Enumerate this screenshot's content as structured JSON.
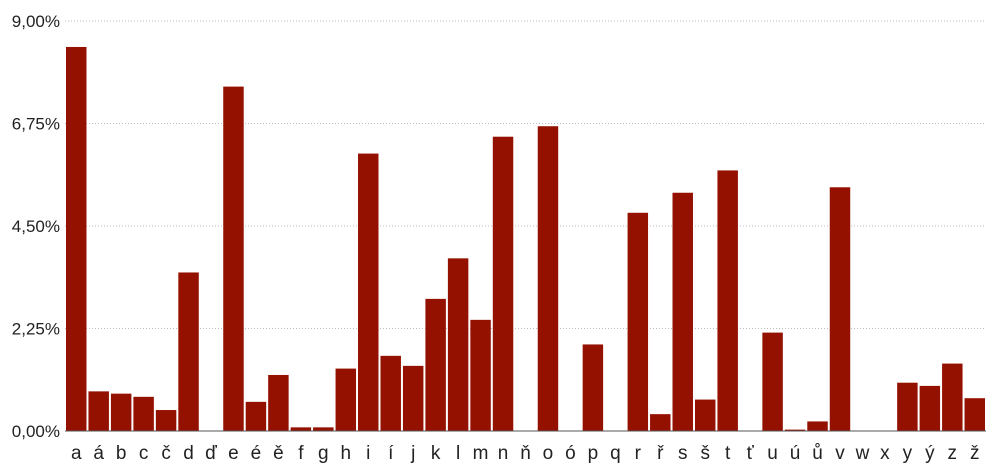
{
  "chart_data": {
    "type": "bar",
    "title": "",
    "xlabel": "",
    "ylabel": "",
    "ylim": [
      0,
      9
    ],
    "y_ticks": [
      "0,00%",
      "2,25%",
      "4,50%",
      "6,75%",
      "9,00%"
    ],
    "y_tick_values": [
      0,
      2.25,
      4.5,
      6.75,
      9
    ],
    "grid": true,
    "bar_color": "#941100",
    "categories": [
      "a",
      "á",
      "b",
      "c",
      "č",
      "d",
      "ď",
      "e",
      "é",
      "ě",
      "f",
      "g",
      "h",
      "i",
      "í",
      "j",
      "k",
      "l",
      "m",
      "n",
      "ň",
      "o",
      "ó",
      "p",
      "q",
      "r",
      "ř",
      "s",
      "š",
      "t",
      "ť",
      "u",
      "ú",
      "ů",
      "v",
      "w",
      "x",
      "y",
      "ý",
      "z",
      "ž"
    ],
    "values": [
      8.43,
      0.87,
      0.82,
      0.75,
      0.46,
      3.48,
      0,
      7.56,
      0.64,
      1.23,
      0.08,
      0.08,
      1.37,
      6.09,
      1.65,
      1.43,
      2.9,
      3.79,
      2.44,
      6.46,
      0,
      6.69,
      0,
      1.9,
      0,
      4.79,
      0.37,
      5.23,
      0.69,
      5.72,
      0,
      2.16,
      0.03,
      0.21,
      5.35,
      0,
      0,
      1.06,
      0.99,
      1.48,
      0.72
    ]
  }
}
